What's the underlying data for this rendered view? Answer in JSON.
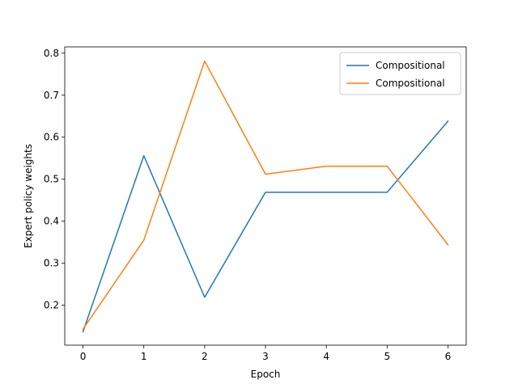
{
  "chart_data": {
    "type": "line",
    "title": "",
    "xlabel": "Epoch",
    "ylabel": "Expert policy weights",
    "x": [
      0,
      1,
      2,
      3,
      4,
      5,
      6
    ],
    "xticks": [
      "0",
      "1",
      "2",
      "3",
      "4",
      "5",
      "6"
    ],
    "yticks": [
      "0.2",
      "0.3",
      "0.4",
      "0.5",
      "0.6",
      "0.7",
      "0.8"
    ],
    "xlim": [
      -0.3,
      6.3
    ],
    "ylim": [
      0.105,
      0.815
    ],
    "grid": false,
    "legend_position": "top-right",
    "series": [
      {
        "name": "Compositional",
        "color": "#1f77b4",
        "values": [
          0.137,
          0.556,
          0.219,
          0.469,
          0.469,
          0.469,
          0.638
        ]
      },
      {
        "name": "Compositional",
        "color": "#ff7f0e",
        "values": [
          0.143,
          0.355,
          0.781,
          0.512,
          0.531,
          0.531,
          0.344
        ]
      }
    ]
  }
}
